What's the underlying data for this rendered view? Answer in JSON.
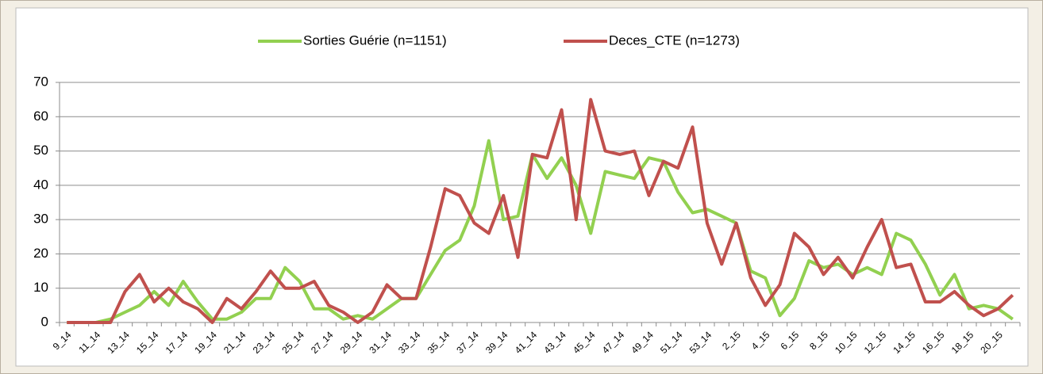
{
  "chart_data": {
    "type": "line",
    "categories": [
      "9_14",
      null,
      "11_14",
      null,
      "13_14",
      null,
      "15_14",
      null,
      "17_14",
      null,
      "19_14",
      null,
      "21_14",
      null,
      "23_14",
      null,
      "25_14",
      null,
      "27_14",
      null,
      "29_14",
      null,
      "31_14",
      null,
      "33_14",
      null,
      "35_14",
      null,
      "37_14",
      null,
      "39_14",
      null,
      "41_14",
      null,
      "43_14",
      null,
      "45_14",
      null,
      "47_14",
      null,
      "49_14",
      null,
      "51_14",
      null,
      "53_14",
      null,
      "2_15",
      null,
      "4_15",
      null,
      "6_15",
      null,
      "8_15",
      null,
      "10_15",
      null,
      "12_15",
      null,
      "14_15",
      null,
      "16_15",
      null,
      "18_15",
      null,
      "20_15",
      null
    ],
    "series": [
      {
        "name": "Sorties Guérie (n=1151)",
        "color": "#92d050",
        "values": [
          0,
          0,
          0,
          1,
          3,
          5,
          9,
          5,
          12,
          6,
          1,
          1,
          3,
          7,
          7,
          16,
          12,
          4,
          4,
          1,
          2,
          1,
          4,
          7,
          7,
          14,
          21,
          24,
          34,
          53,
          30,
          31,
          49,
          42,
          48,
          40,
          26,
          44,
          43,
          42,
          48,
          47,
          38,
          32,
          33,
          31,
          29,
          15,
          13,
          2,
          7,
          18,
          16,
          17,
          14,
          16,
          14,
          26,
          24,
          17,
          8,
          14,
          4,
          5,
          4,
          1
        ]
      },
      {
        "name": "Deces_CTE (n=1273)",
        "color": "#c0504d",
        "values": [
          0,
          0,
          0,
          0,
          9,
          14,
          6,
          10,
          6,
          4,
          0,
          7,
          4,
          9,
          15,
          10,
          10,
          12,
          5,
          3,
          0,
          3,
          11,
          7,
          7,
          22,
          39,
          37,
          29,
          26,
          37,
          19,
          49,
          48,
          62,
          30,
          65,
          50,
          49,
          50,
          37,
          47,
          45,
          57,
          29,
          17,
          29,
          13,
          5,
          11,
          26,
          22,
          14,
          19,
          13,
          22,
          30,
          16,
          17,
          6,
          6,
          9,
          5,
          2,
          4,
          8
        ]
      }
    ],
    "ylim": [
      0,
      70
    ],
    "yticks": [
      0,
      10,
      20,
      30,
      40,
      50,
      60,
      70
    ],
    "grid": true,
    "legend": "top"
  }
}
